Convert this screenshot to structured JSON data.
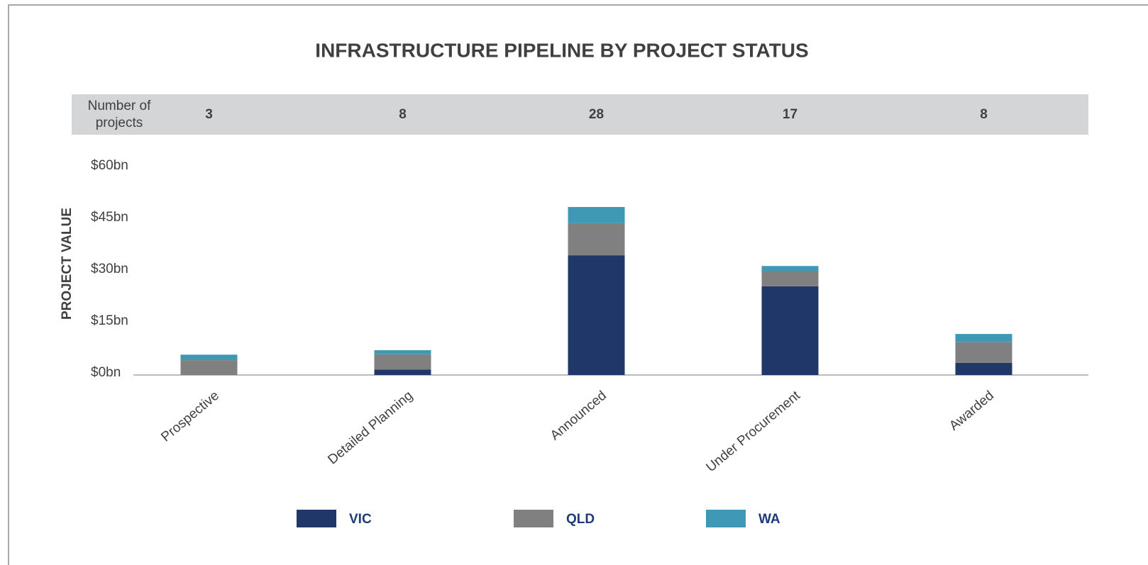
{
  "chart_data": {
    "type": "stacked_bar",
    "title": "INFRASTRUCTURE PIPELINE BY PROJECT STATUS",
    "y_label": "PROJECT VALUE",
    "project_count_label": "Number of projects",
    "project_counts": [
      3,
      8,
      28,
      17,
      8
    ],
    "categories": [
      "Prospective",
      "Detailed  Planning",
      "Announced",
      "Under Procurement",
      "Awarded"
    ],
    "series": [
      {
        "name": "VIC",
        "color": "#1f3869",
        "values": [
          0,
          1.6,
          34.7,
          25.7,
          3.5
        ]
      },
      {
        "name": "QLD",
        "color": "#808080",
        "values": [
          4.3,
          4.4,
          9.3,
          4.5,
          6.0
        ]
      },
      {
        "name": "WA",
        "color": "#3f98b5",
        "values": [
          1.6,
          1.2,
          4.7,
          1.4,
          2.4
        ]
      }
    ],
    "ylim": [
      0,
      60
    ],
    "yticks": [
      {
        "value": 0,
        "label": "$0bn"
      },
      {
        "value": 15,
        "label": "$15bn"
      },
      {
        "value": 30,
        "label": "$30bn"
      },
      {
        "value": 45,
        "label": "$45bn"
      },
      {
        "value": 60,
        "label": "$60bn"
      }
    ],
    "grid": false
  }
}
